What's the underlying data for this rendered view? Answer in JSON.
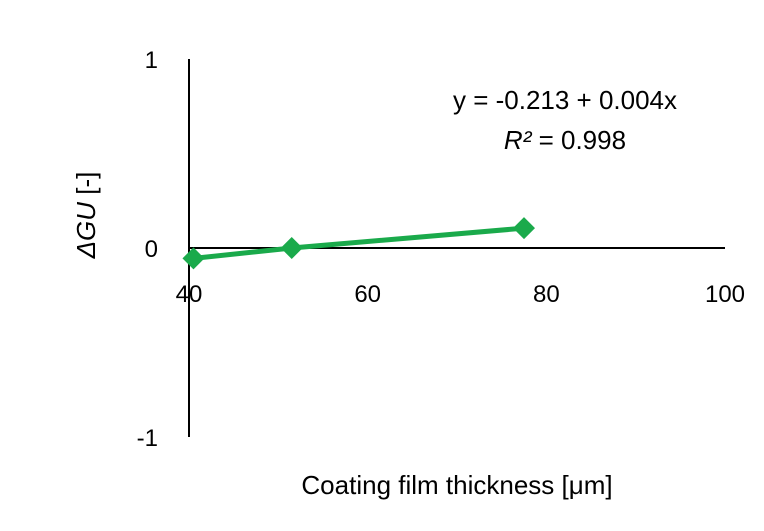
{
  "chart_data": {
    "type": "line",
    "xlabel": "Coating film thickness [μm]",
    "ylabel_symbol": "ΔGU",
    "ylabel_unit": " [-]",
    "xlim": [
      40,
      100
    ],
    "ylim": [
      -1,
      1
    ],
    "x_ticks": [
      "40",
      "60",
      "80",
      "100"
    ],
    "y_ticks": [
      "1",
      "0",
      "-1"
    ],
    "series": [
      {
        "color": "#1aaa4b",
        "marker": "diamond",
        "x": [
          40.5,
          51.5,
          77.5
        ],
        "y": [
          -0.055,
          0.0,
          0.105
        ]
      }
    ],
    "annotation": {
      "equation": "y = -0.213 + 0.004x",
      "r2_symbol": "R²",
      "r2_value": " = 0.998"
    },
    "grid": false,
    "legend": "none"
  }
}
